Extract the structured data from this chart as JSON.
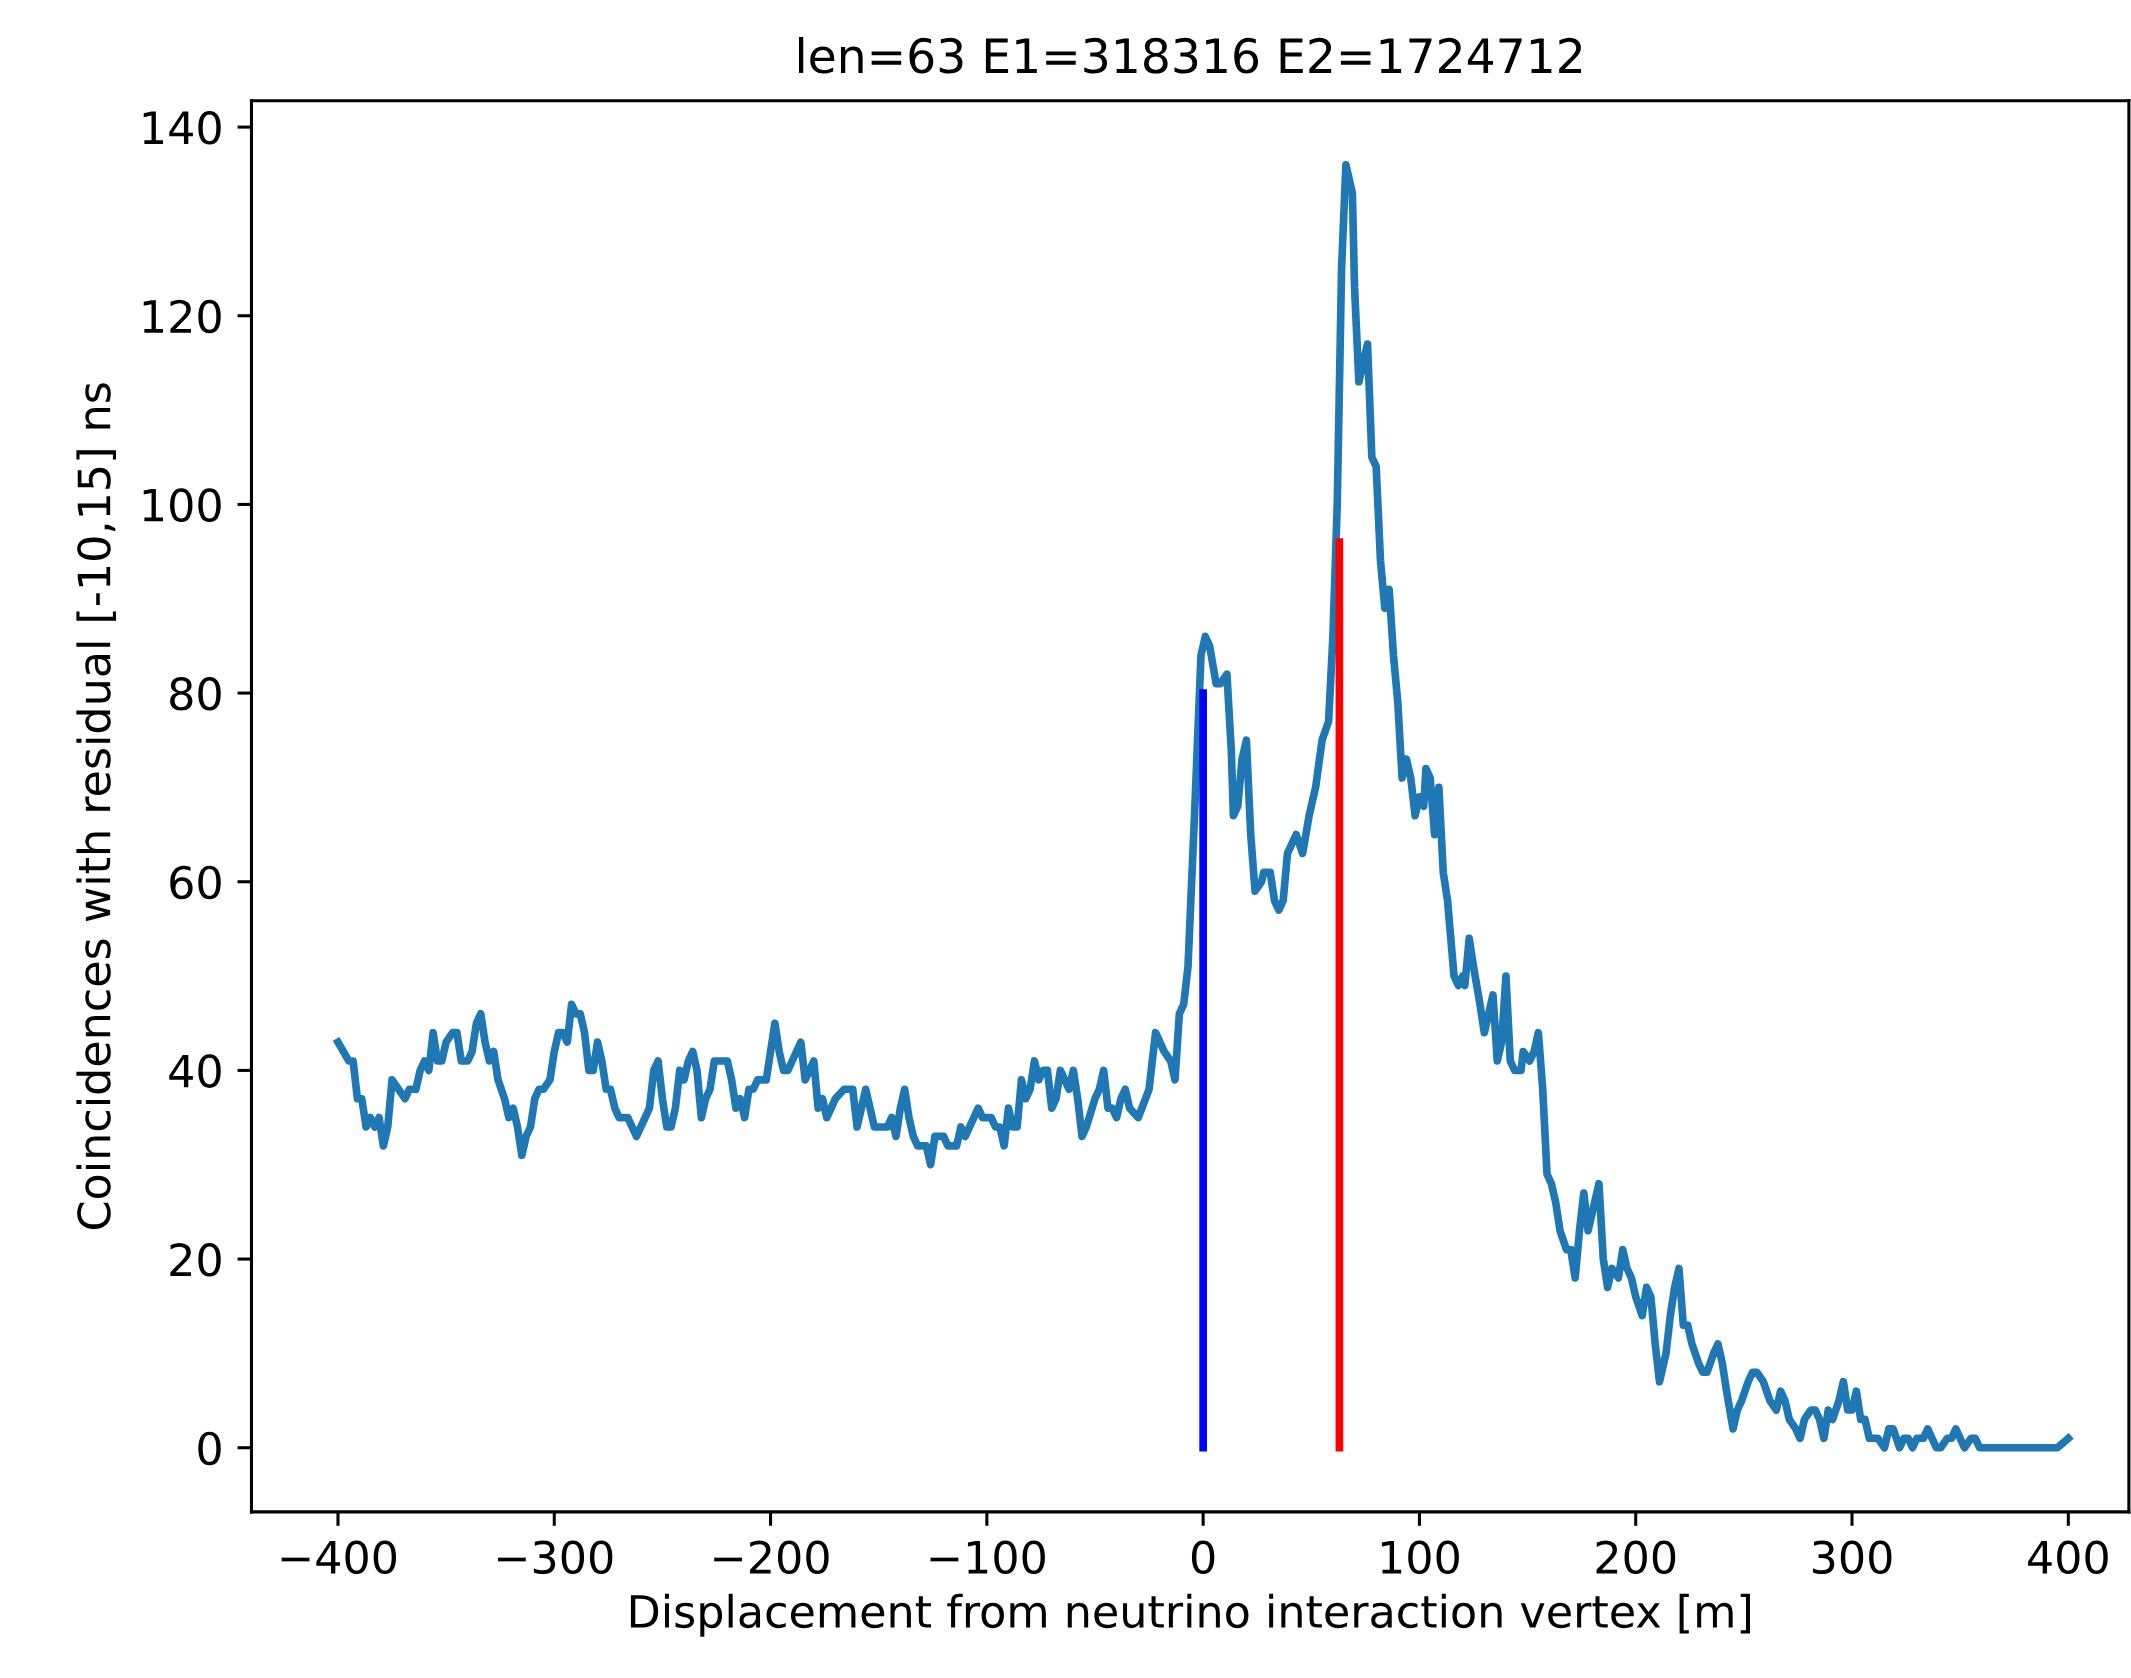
{
  "chart_data": {
    "type": "line",
    "title": "len=63 E1=318316 E2=1724712",
    "xlabel": "Displacement from neutrino interaction vertex [m]",
    "ylabel": "Coincidences with residual [-10,15] ns",
    "xlim": [
      -440,
      428
    ],
    "ylim": [
      -6.8,
      142.8
    ],
    "xticks": [
      {
        "value": -400,
        "label": "−400"
      },
      {
        "value": -300,
        "label": "−300"
      },
      {
        "value": -200,
        "label": "−200"
      },
      {
        "value": -100,
        "label": "−100"
      },
      0,
      100,
      200,
      300,
      400
    ],
    "yticks": [
      0,
      20,
      40,
      60,
      80,
      100,
      120,
      140
    ],
    "grid": false,
    "marker": "none",
    "line_style": "solid",
    "series": [
      {
        "color": "#1f77b4",
        "x": [
          -400,
          -395,
          -393,
          -391,
          -389,
          -387,
          -385,
          -383,
          -381,
          -379,
          -377,
          -375,
          -372,
          -369,
          -367,
          -364,
          -362,
          -360,
          -358,
          -356,
          -354,
          -352,
          -350,
          -347,
          -345,
          -343,
          -340,
          -338,
          -336,
          -334,
          -332,
          -330,
          -328,
          -326,
          -323,
          -321,
          -319,
          -317,
          -315,
          -313,
          -311,
          -309,
          -307,
          -305,
          -302,
          -300,
          -298,
          -296,
          -294,
          -292,
          -290,
          -288,
          -286,
          -284,
          -282,
          -280,
          -278,
          -276,
          -274,
          -272,
          -270,
          -266,
          -264,
          -262,
          -258,
          -256,
          -254,
          -252,
          -250,
          -248,
          -246,
          -244,
          -242,
          -240,
          -238,
          -236,
          -234,
          -232,
          -230,
          -228,
          -226,
          -220,
          -218,
          -216,
          -214,
          -212,
          -210,
          -208,
          -206,
          -202,
          -200,
          -198,
          -196,
          -194,
          -192,
          -190,
          -186,
          -184,
          -182,
          -180,
          -178,
          -176,
          -174,
          -170,
          -166,
          -162,
          -160,
          -158,
          -156,
          -152,
          -146,
          -144,
          -142,
          -140,
          -138,
          -136,
          -134,
          -132,
          -128,
          -126,
          -124,
          -120,
          -118,
          -114,
          -112,
          -110,
          -106,
          -104,
          -102,
          -98,
          -96,
          -94,
          -92,
          -90,
          -88,
          -86,
          -84,
          -82,
          -80,
          -78,
          -76,
          -74,
          -72,
          -70,
          -68,
          -66,
          -64,
          -62,
          -60,
          -58,
          -56,
          -54,
          -50,
          -48,
          -46,
          -44,
          -42,
          -40,
          -38,
          -36,
          -34,
          -30,
          -25,
          -22,
          -18,
          -15,
          -13,
          -11,
          -9,
          -7,
          -4,
          -1,
          1,
          3,
          6,
          8,
          11,
          13,
          14,
          16,
          18,
          20,
          22,
          24,
          27,
          28,
          31,
          33,
          35,
          37,
          39,
          43,
          46,
          49,
          52,
          55,
          58,
          60,
          62,
          64,
          66,
          69,
          70,
          72,
          74,
          76,
          78,
          80,
          82,
          84,
          86,
          88,
          90,
          92,
          94,
          96,
          98,
          100,
          102,
          103,
          105,
          107,
          109,
          111,
          113,
          116,
          118,
          120,
          121,
          123,
          125,
          128,
          130,
          132,
          134,
          136,
          138,
          140,
          142,
          144,
          147,
          148,
          151,
          153,
          155,
          157,
          159,
          161,
          163,
          165,
          168,
          170,
          172,
          174,
          176,
          178,
          181,
          183,
          185,
          187,
          189,
          192,
          194,
          196,
          198,
          200,
          203,
          205,
          207,
          209,
          211,
          214,
          216,
          218,
          220,
          222,
          224,
          226,
          229,
          231,
          233,
          236,
          238,
          240,
          242,
          245,
          247,
          249,
          252,
          254,
          256,
          259,
          262,
          265,
          267,
          269,
          271,
          274,
          276,
          278,
          281,
          283,
          285,
          287,
          289,
          291,
          294,
          296,
          298,
          300,
          302,
          304,
          306,
          308,
          312,
          315,
          317,
          319,
          322,
          324,
          326,
          328,
          330,
          333,
          335,
          337,
          339,
          341,
          344,
          346,
          348,
          350,
          352,
          355,
          357,
          359,
          395,
          400
        ],
        "values": [
          43,
          41,
          41,
          37,
          37,
          34,
          35,
          34,
          35,
          32,
          34,
          39,
          38,
          37,
          38,
          38,
          40,
          41,
          40,
          44,
          41,
          41,
          43,
          44,
          44,
          41,
          41,
          42,
          45,
          46,
          43,
          41,
          42,
          39,
          37,
          35,
          36,
          34,
          31,
          33,
          34,
          37,
          38,
          38,
          39,
          42,
          44,
          44,
          43,
          47,
          46,
          46,
          44,
          40,
          40,
          43,
          41,
          38,
          38,
          36,
          35,
          35,
          34,
          33,
          35,
          36,
          40,
          41,
          37,
          34,
          34,
          36,
          40,
          39,
          41,
          42,
          40,
          35,
          37,
          38,
          41,
          41,
          39,
          36,
          37,
          35,
          38,
          38,
          39,
          39,
          42,
          45,
          42,
          40,
          40,
          41,
          43,
          39,
          40,
          41,
          36,
          37,
          35,
          37,
          38,
          38,
          34,
          36,
          38,
          34,
          34,
          35,
          33,
          36,
          38,
          35,
          33,
          32,
          32,
          30,
          33,
          33,
          32,
          32,
          34,
          33,
          35,
          36,
          35,
          35,
          34,
          34,
          32,
          36,
          34,
          34,
          39,
          37,
          38,
          41,
          39,
          40,
          40,
          36,
          37,
          40,
          39,
          38,
          40,
          37,
          33,
          34,
          37,
          38,
          40,
          36,
          36,
          35,
          37,
          38,
          36,
          35,
          38,
          44,
          42,
          41,
          39,
          46,
          47,
          51,
          67,
          84,
          86,
          85,
          81,
          81,
          82,
          74,
          67,
          68,
          73,
          75,
          65,
          59,
          60,
          61,
          61,
          58,
          57,
          58,
          63,
          65,
          63,
          67,
          70,
          75,
          77,
          86,
          100,
          125,
          136,
          133,
          123,
          113,
          115,
          117,
          105,
          104,
          94,
          89,
          91,
          84,
          79,
          71,
          73,
          71,
          67,
          69,
          68,
          72,
          71,
          65,
          70,
          61,
          58,
          50,
          49,
          50,
          49,
          54,
          51,
          47,
          44,
          46,
          48,
          41,
          43,
          50,
          41,
          40,
          40,
          42,
          41,
          42,
          44,
          38,
          29,
          28,
          26,
          23,
          21,
          21,
          18,
          23,
          27,
          23,
          26,
          28,
          20,
          17,
          19,
          18,
          21,
          19,
          18,
          16,
          14,
          17,
          16,
          11,
          7,
          10,
          14,
          17,
          19,
          13,
          13,
          11,
          9,
          8,
          8,
          10,
          11,
          9,
          6,
          2,
          4,
          5,
          7,
          8,
          8,
          7,
          5,
          4,
          6,
          5,
          3,
          2,
          1,
          3,
          4,
          4,
          3,
          1,
          4,
          3,
          5,
          7,
          4,
          4,
          6,
          3,
          3,
          1,
          1,
          0,
          2,
          2,
          0,
          1,
          1,
          0,
          1,
          1,
          2,
          1,
          0,
          0,
          1,
          1,
          2,
          1,
          0,
          1,
          1,
          0,
          0,
          1
        ]
      },
      {
        "color": "#0000ff",
        "x": [
          0,
          0
        ],
        "values": [
          0,
          80
        ]
      },
      {
        "color": "#ff0000",
        "x": [
          63,
          63
        ],
        "values": [
          0,
          96
        ]
      }
    ]
  }
}
